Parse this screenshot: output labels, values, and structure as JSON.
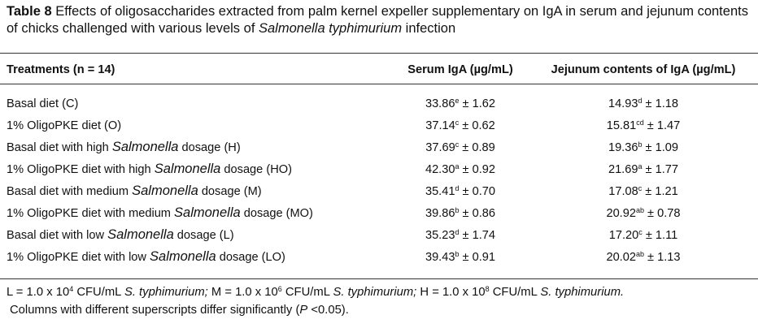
{
  "caption": {
    "label": "Table 8",
    "text_before_italic": " Effects of oligosaccharides extracted from palm kernel expeller supplementary on IgA in serum and jejunum contents of chicks challenged with various levels of ",
    "italic": "Salmonella typhimurium",
    "text_after_italic": " infection"
  },
  "table": {
    "headers": [
      "Treatments (n = 14)",
      "Serum IgA (µg/mL)",
      "Jejunum contents of IgA (µg/mL)"
    ],
    "rows": [
      {
        "pre": "Basal diet (C)",
        "ital": "",
        "post": "",
        "serum": "33.86",
        "serum_sup": "e",
        "serum_sd": " ± 1.62",
        "jej": "14.93",
        "jej_sup": "d",
        "jej_sd": " ± 1.18"
      },
      {
        "pre": "1% OligoPKE diet (O)",
        "ital": "",
        "post": "",
        "serum": "37.14",
        "serum_sup": "c",
        "serum_sd": " ± 0.62",
        "jej": "15.81",
        "jej_sup": "cd",
        "jej_sd": " ± 1.47"
      },
      {
        "pre": "Basal diet with high ",
        "ital": "Salmonella",
        "post": " dosage (H)",
        "serum": "37.69",
        "serum_sup": "c",
        "serum_sd": " ± 0.89",
        "jej": "19.36",
        "jej_sup": "b",
        "jej_sd": " ± 1.09"
      },
      {
        "pre": "1% OligoPKE diet with high ",
        "ital": "Salmonella",
        "post": " dosage (HO)",
        "serum": "42.30",
        "serum_sup": "a",
        "serum_sd": " ± 0.92",
        "jej": "21.69",
        "jej_sup": "a",
        "jej_sd": " ± 1.77"
      },
      {
        "pre": "Basal diet with medium ",
        "ital": "Salmonella",
        "post": " dosage (M)",
        "serum": "35.41",
        "serum_sup": "d",
        "serum_sd": " ± 0.70",
        "jej": "17.08",
        "jej_sup": "c",
        "jej_sd": " ± 1.21"
      },
      {
        "pre": "1% OligoPKE diet with medium ",
        "ital": "Salmonella",
        "post": " dosage (MO)",
        "serum": "39.86",
        "serum_sup": "b",
        "serum_sd": " ± 0.86",
        "jej": "20.92",
        "jej_sup": "ab",
        "jej_sd": " ± 0.78"
      },
      {
        "pre": "Basal diet with low ",
        "ital": "Salmonella",
        "post": " dosage (L)",
        "serum": "35.23",
        "serum_sup": "d",
        "serum_sd": " ± 1.74",
        "jej": "17.20",
        "jej_sup": "c",
        "jej_sd": " ± 1.11"
      },
      {
        "pre": "1% OligoPKE diet with low ",
        "ital": "Salmonella",
        "post": " dosage (LO)",
        "serum": "39.43",
        "serum_sup": "b",
        "serum_sd": " ± 0.91",
        "jej": "20.02",
        "jej_sup": "ab",
        "jej_sd": " ± 1.13"
      }
    ]
  },
  "footnote": {
    "l_pre": "L = 1.0 x 10",
    "l_exp": "4",
    "l_unit": " CFU/mL ",
    "l_org": "S. typhimurium;",
    "m_pre": " M = 1.0 x 10",
    "m_exp": "6",
    "m_unit": " CFU/mL ",
    "m_org": "S. typhimurium;",
    "h_pre": " H = 1.0 x 10",
    "h_exp": "8",
    "h_unit": " CFU/mL ",
    "h_org": "S. typhimurium.",
    "line2_pre": "Columns with different superscripts differ significantly (",
    "line2_p": "P",
    "line2_post": " <0.05)."
  }
}
